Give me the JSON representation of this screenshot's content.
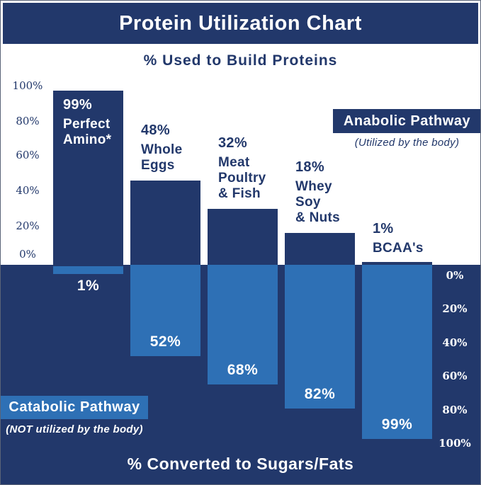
{
  "header": {
    "title": "Protein Utilization Chart"
  },
  "anabolic_section": {
    "heading": "% Used to Build Proteins",
    "axis_ticks": [
      "100%",
      "80%",
      "60%",
      "40%",
      "20%",
      "0%"
    ],
    "legend": {
      "label": "Anabolic Pathway",
      "note": "(Utilized by the body)"
    }
  },
  "catabolic_section": {
    "heading": "% Converted to Sugars/Fats",
    "axis_ticks": [
      "0%",
      "20%",
      "40%",
      "60%",
      "80%",
      "100%"
    ],
    "legend": {
      "label": "Catabolic Pathway",
      "note": "(NOT utilized by the body)"
    }
  },
  "chart_data": {
    "type": "bar",
    "orientation": "diverging-vertical",
    "title": "Protein Utilization Chart",
    "top_axis_label": "% Used to Build Proteins",
    "bottom_axis_label": "% Converted to Sugars/Fats",
    "top_axis_range": [
      0,
      100
    ],
    "bottom_axis_range": [
      0,
      100
    ],
    "tick_step": 20,
    "categories": [
      "Perfect Amino*",
      "Whole Eggs",
      "Meat Poultry & Fish",
      "Whey Soy & Nuts",
      "BCAA's"
    ],
    "category_lines": [
      [
        "Perfect",
        "Amino*"
      ],
      [
        "Whole",
        "Eggs"
      ],
      [
        "Meat",
        "Poultry",
        "& Fish"
      ],
      [
        "Whey",
        "Soy",
        "& Nuts"
      ],
      [
        "BCAA's"
      ]
    ],
    "series": [
      {
        "name": "Anabolic Pathway (% used to build proteins)",
        "values": [
          99,
          48,
          32,
          18,
          1
        ],
        "labels": [
          "99%",
          "48%",
          "32%",
          "18%",
          "1%"
        ]
      },
      {
        "name": "Catabolic Pathway (% converted to sugars/fats)",
        "values": [
          1,
          52,
          68,
          82,
          99
        ],
        "labels": [
          "1%",
          "52%",
          "68%",
          "82%",
          "99%"
        ]
      }
    ]
  },
  "colors": {
    "navy": "#22386B",
    "blue": "#2E70B5",
    "white": "#FFFFFF"
  }
}
